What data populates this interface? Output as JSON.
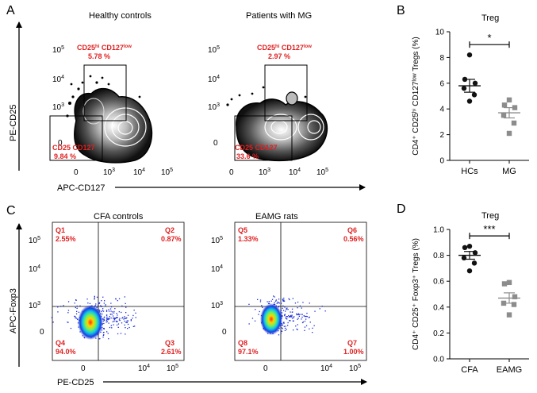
{
  "panel_letters": [
    "A",
    "B",
    "C",
    "D"
  ],
  "panel_a": {
    "titles": [
      "Healthy controls",
      "Patients with MG"
    ],
    "ylabel": "PE-CD25",
    "xlabel": "APC-CD127",
    "y_ticks": [
      {
        "b": "10",
        "e": "5"
      },
      {
        "b": "10",
        "e": "4"
      },
      {
        "b": "10",
        "e": "3"
      },
      {
        "b": "0",
        "e": ""
      }
    ],
    "x_ticks": [
      {
        "b": "0",
        "e": ""
      },
      {
        "b": "10",
        "e": "3"
      },
      {
        "b": "10",
        "e": "4"
      },
      {
        "b": "10",
        "e": "5"
      }
    ],
    "gates": [
      {
        "upper_pre": "CD25",
        "upper_sup1": "hi",
        "upper_mid": " CD127",
        "upper_sup2": "low",
        "upper_value": "5.78 %",
        "lower_label": "CD25  CD127",
        "lower_value": "9.84 %"
      },
      {
        "upper_pre": "CD25",
        "upper_sup1": "hi",
        "upper_mid": " CD127",
        "upper_sup2": "low",
        "upper_value": "2.97 %",
        "lower_label": "CD25  CD127",
        "lower_value": "33.6 %"
      }
    ]
  },
  "panel_c": {
    "titles": [
      "CFA controls",
      "EAMG rats"
    ],
    "ylabel": "APC-Foxp3",
    "xlabel": "PE-CD25",
    "y_ticks": [
      {
        "b": "10",
        "e": "5"
      },
      {
        "b": "10",
        "e": "4"
      },
      {
        "b": "10",
        "e": "3"
      },
      {
        "b": "0",
        "e": ""
      }
    ],
    "x_ticks": [
      {
        "b": "0",
        "e": ""
      },
      {
        "b": "10",
        "e": "4"
      },
      {
        "b": "10",
        "e": "5"
      }
    ],
    "quadrants": [
      [
        {
          "q": "Q1",
          "v": "2.55%"
        },
        {
          "q": "Q2",
          "v": "0.87%"
        },
        {
          "q": "Q4",
          "v": "94.0%"
        },
        {
          "q": "Q3",
          "v": "2.61%"
        }
      ],
      [
        {
          "q": "Q5",
          "v": "1.33%"
        },
        {
          "q": "Q6",
          "v": "0.56%"
        },
        {
          "q": "Q8",
          "v": "97.1%"
        },
        {
          "q": "Q7",
          "v": "1.00%"
        }
      ]
    ]
  },
  "chart_data": [
    {
      "type": "scatter",
      "panel": "B",
      "title": "Treg",
      "ylabel": "CD4⁺ CD25ʰⁱ CD127ˡᵒʷ Tregs (%)",
      "categories": [
        "HCs",
        "MG"
      ],
      "ylim": [
        0,
        10
      ],
      "yticks": [
        0,
        2,
        4,
        6,
        8,
        10
      ],
      "grid": false,
      "series": [
        {
          "values": [
            8.2,
            6.3,
            6.0,
            5.6,
            5.1,
            4.6
          ],
          "mean": 5.8,
          "sem": 0.5,
          "color": "#111111"
        },
        {
          "values": [
            4.7,
            4.3,
            4.1,
            3.5,
            2.9,
            2.1
          ],
          "mean": 3.7,
          "sem": 0.4,
          "color": "#8c8c8c"
        }
      ],
      "significance": "*"
    },
    {
      "type": "scatter",
      "panel": "D",
      "title": "Treg",
      "ylabel": "CD4⁺ CD25⁺ Foxp3⁺ Tregs (%)",
      "categories": [
        "CFA",
        "EAMG"
      ],
      "ylim": [
        0,
        1.0
      ],
      "yticks": [
        0.0,
        0.2,
        0.4,
        0.6,
        0.8,
        1.0
      ],
      "grid": false,
      "series": [
        {
          "values": [
            0.87,
            0.86,
            0.82,
            0.78,
            0.74,
            0.68
          ],
          "mean": 0.8,
          "sem": 0.03,
          "color": "#111111"
        },
        {
          "values": [
            0.59,
            0.58,
            0.48,
            0.43,
            0.42,
            0.34
          ],
          "mean": 0.47,
          "sem": 0.04,
          "color": "#8c8c8c"
        }
      ],
      "significance": "***"
    }
  ]
}
